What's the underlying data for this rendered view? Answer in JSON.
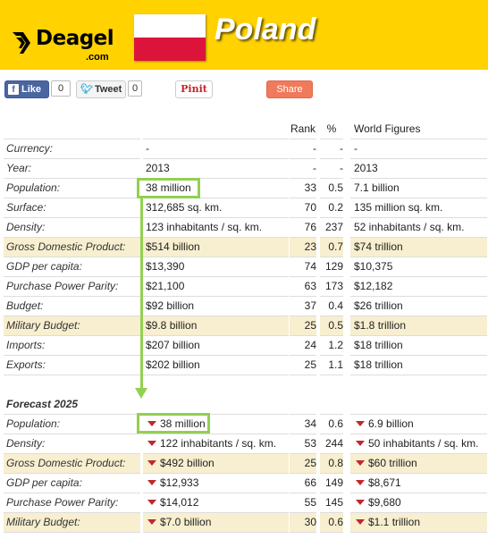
{
  "brand": {
    "name": "Deagel",
    "suffix": ".com"
  },
  "country": "Poland",
  "flag_colors": {
    "top": "#ffffff",
    "bottom": "#dc143c"
  },
  "social": {
    "like_label": "Like",
    "like_count": "0",
    "tweet_label": "Tweet",
    "tweet_count": "0",
    "pin_label": "Pinit",
    "share_label": "Share"
  },
  "table": {
    "headers": {
      "rank": "Rank",
      "percent": "%",
      "world": "World Figures"
    },
    "rows": [
      {
        "label": "Currency:",
        "value": "-",
        "rank": "-",
        "pct": "-",
        "world": "-",
        "highlight": false
      },
      {
        "label": "Year:",
        "value": "2013",
        "rank": "-",
        "pct": "-",
        "world": "2013",
        "highlight": false
      },
      {
        "label": "Population:",
        "value": "38 million",
        "rank": "33",
        "pct": "0.5",
        "world": "7.1 billion",
        "highlight": false
      },
      {
        "label": "Surface:",
        "value": "312,685 sq. km.",
        "rank": "70",
        "pct": "0.2",
        "world": "135 million sq. km.",
        "highlight": false
      },
      {
        "label": "Density:",
        "value": "123 inhabitants / sq. km.",
        "rank": "76",
        "pct": "237",
        "world": "52 inhabitants / sq. km.",
        "highlight": false
      },
      {
        "label": "Gross Domestic Product:",
        "value": "$514 billion",
        "rank": "23",
        "pct": "0.7",
        "world": "$74 trillion",
        "highlight": true
      },
      {
        "label": "GDP per capita:",
        "value": "$13,390",
        "rank": "74",
        "pct": "129",
        "world": "$10,375",
        "highlight": false
      },
      {
        "label": "Purchase Power Parity:",
        "value": "$21,100",
        "rank": "63",
        "pct": "173",
        "world": "$12,182",
        "highlight": false
      },
      {
        "label": "Budget:",
        "value": "$92 billion",
        "rank": "37",
        "pct": "0.4",
        "world": "$26 trillion",
        "highlight": false
      },
      {
        "label": "Military Budget:",
        "value": "$9.8 billion",
        "rank": "25",
        "pct": "0.5",
        "world": "$1.8 trillion",
        "highlight": true
      },
      {
        "label": "Imports:",
        "value": "$207 billion",
        "rank": "24",
        "pct": "1.2",
        "world": "$18 trillion",
        "highlight": false
      },
      {
        "label": "Exports:",
        "value": "$202 billion",
        "rank": "25",
        "pct": "1.1",
        "world": "$18 trillion",
        "highlight": false
      }
    ],
    "forecast_title": "Forecast 2025",
    "forecast_rows": [
      {
        "label": "Population:",
        "value": "38 million",
        "rank": "34",
        "pct": "0.6",
        "world": "6.9 billion",
        "highlight": false
      },
      {
        "label": "Density:",
        "value": "122 inhabitants / sq. km.",
        "rank": "53",
        "pct": "244",
        "world": "50 inhabitants / sq. km.",
        "highlight": false
      },
      {
        "label": "Gross Domestic Product:",
        "value": "$492 billion",
        "rank": "25",
        "pct": "0.8",
        "world": "$60 trillion",
        "highlight": true
      },
      {
        "label": "GDP per capita:",
        "value": "$12,933",
        "rank": "66",
        "pct": "149",
        "world": "$8,671",
        "highlight": false
      },
      {
        "label": "Purchase Power Parity:",
        "value": "$14,012",
        "rank": "55",
        "pct": "145",
        "world": "$9,680",
        "highlight": false
      },
      {
        "label": "Military Budget:",
        "value": "$7.0 billion",
        "rank": "30",
        "pct": "0.6",
        "world": "$1.1 trillion",
        "highlight": true
      }
    ]
  },
  "accent_colors": {
    "header_bg": "#ffd200",
    "highlight_box": "#92d050",
    "row_highlight": "#f7efcf",
    "down_arrow": "#c0282c"
  }
}
